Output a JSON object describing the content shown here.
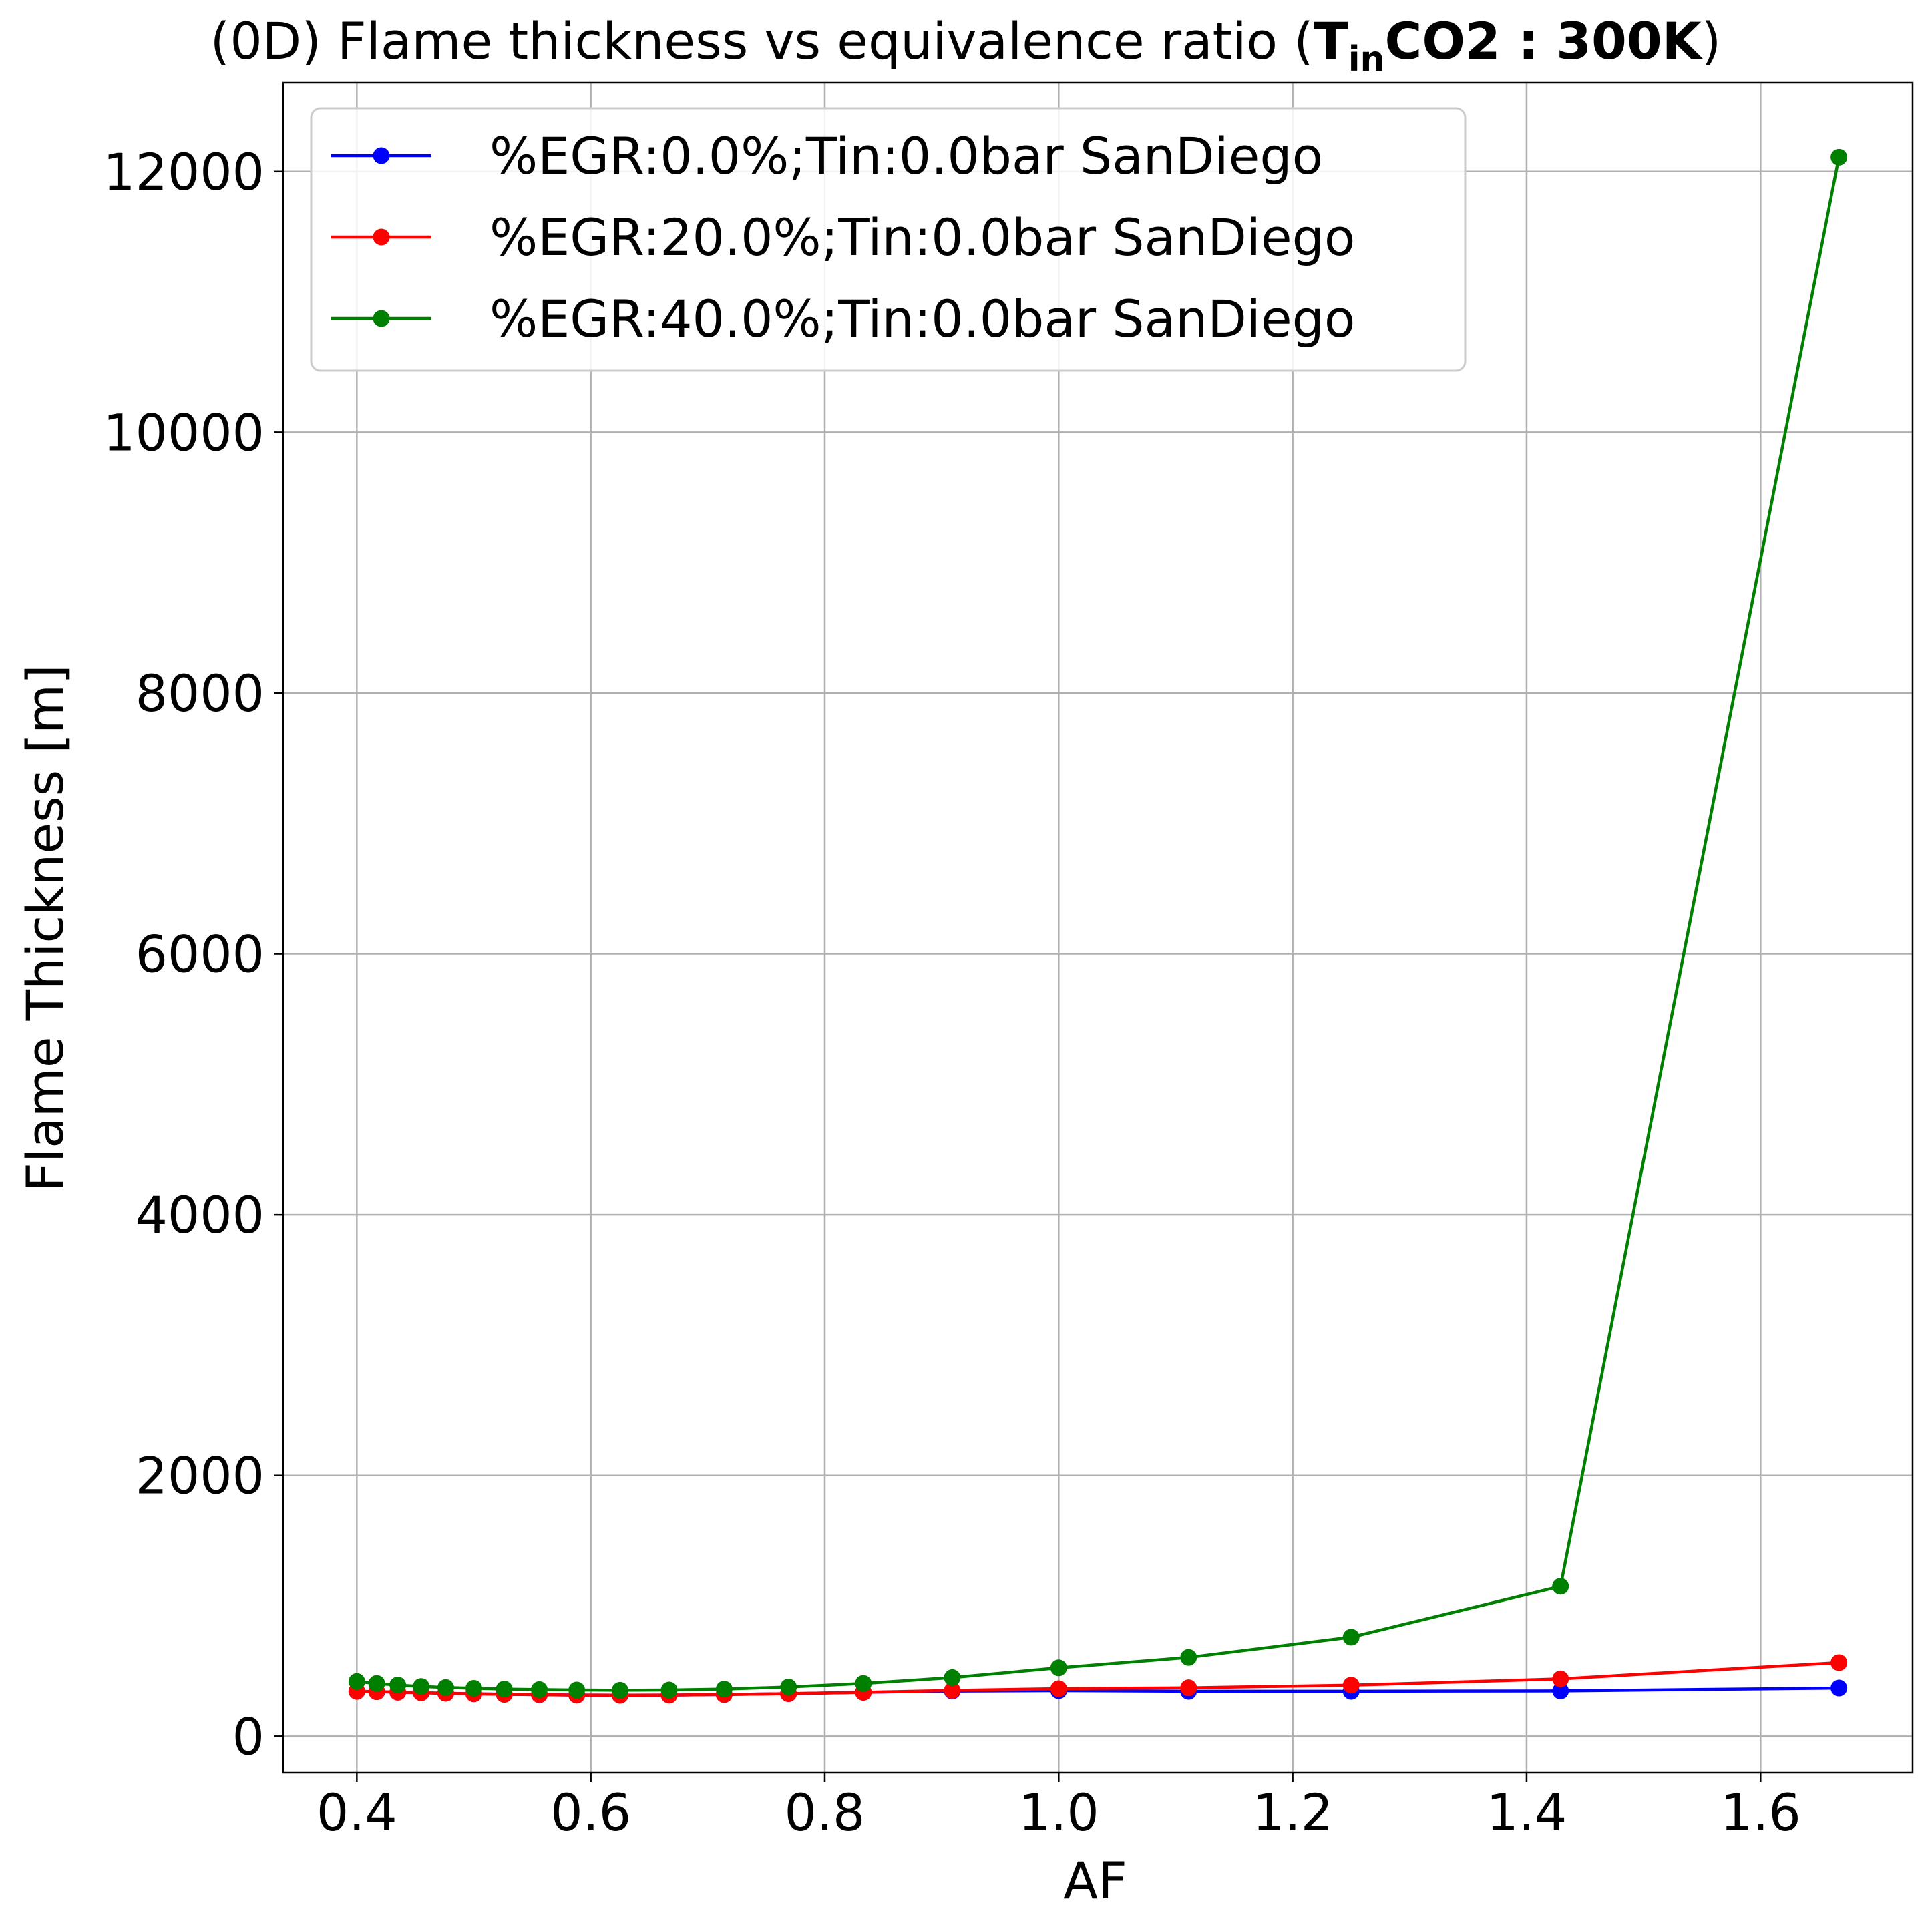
{
  "chart_data": {
    "type": "line",
    "title": {
      "main": "(0D) Flame thickness vs equivalence ratio (",
      "bold_base": "T",
      "bold_sub": "in",
      "bold_rest": "CO2 : 300K",
      "close": ")"
    },
    "xlabel": "AF",
    "ylabel": "Flame Thickness [m]",
    "xlim": [
      0.337,
      1.73
    ],
    "ylim": [
      -280,
      12680
    ],
    "xticks": [
      0.4,
      0.6,
      0.8,
      1.0,
      1.2,
      1.4,
      1.6
    ],
    "xtick_labels": [
      "0.4",
      "0.6",
      "0.8",
      "1.0",
      "1.2",
      "1.4",
      "1.6"
    ],
    "yticks": [
      0,
      2000,
      4000,
      6000,
      8000,
      10000,
      12000
    ],
    "ytick_labels": [
      "0",
      "2000",
      "4000",
      "6000",
      "8000",
      "10000",
      "12000"
    ],
    "grid": true,
    "legend_position": "top-left",
    "x": [
      0.4,
      0.417,
      0.435,
      0.455,
      0.476,
      0.5,
      0.526,
      0.556,
      0.588,
      0.625,
      0.667,
      0.714,
      0.769,
      0.833,
      0.909,
      1.0,
      1.111,
      1.25,
      1.429,
      1.667
    ],
    "series": [
      {
        "name": "%EGR:0.0%;Tin:0.0bar SanDiego",
        "color": "#0000ff",
        "values": [
          345,
          342,
          338,
          334,
          330,
          326,
          322,
          319,
          316,
          315,
          316,
          320,
          327,
          337,
          347,
          350,
          345,
          345,
          348,
          370
        ]
      },
      {
        "name": "%EGR:20.0%;Tin:0.0bar SanDiego",
        "color": "#ff0000",
        "values": [
          345,
          342,
          338,
          334,
          330,
          326,
          322,
          319,
          316,
          315,
          316,
          320,
          327,
          337,
          352,
          365,
          372,
          392,
          440,
          565
        ]
      },
      {
        "name": "%EGR:40.0%;Tin:0.0bar SanDiego",
        "color": "#008000",
        "values": [
          420,
          405,
          393,
          382,
          374,
          368,
          362,
          358,
          355,
          353,
          355,
          362,
          378,
          405,
          450,
          525,
          605,
          760,
          1150,
          12110
        ]
      }
    ]
  }
}
